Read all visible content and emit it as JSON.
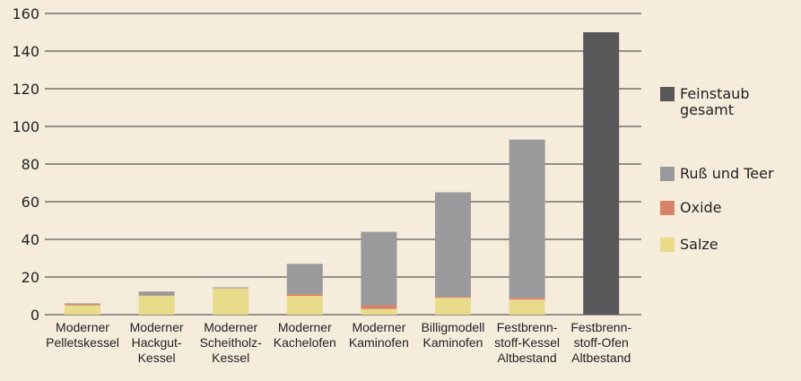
{
  "chart_data": {
    "type": "stacked_bar",
    "categories": [
      [
        "Moderner",
        "Pelletskessel"
      ],
      [
        "Moderner",
        "Hackgut-",
        "Kessel"
      ],
      [
        "Moderner",
        "Scheitholz-",
        "Kessel"
      ],
      [
        "Moderner",
        "Kachelofen"
      ],
      [
        "Moderner",
        "Kaminofen"
      ],
      [
        "Billigmodell",
        "Kaminofen"
      ],
      [
        "Festbrenn-",
        "stoff-Kessel",
        "Altbestand"
      ],
      [
        "Festbrenn-",
        "stoff-Ofen",
        "Altbestand"
      ]
    ],
    "series": [
      {
        "name": "Salze",
        "color": "#e8dc8b",
        "values": [
          5,
          10,
          14,
          10,
          3,
          9,
          8,
          null
        ]
      },
      {
        "name": "Oxide",
        "color": "#d9826a",
        "values": [
          0.5,
          0.3,
          null,
          1,
          2,
          0.5,
          1,
          null
        ]
      },
      {
        "name": "Ruß und Teer",
        "color": "#9a9a9d",
        "values": [
          0.5,
          2,
          0.5,
          16,
          39,
          55.5,
          84,
          null
        ]
      },
      {
        "name": "Feinstaub gesamt",
        "color": "#58585a",
        "values": [
          null,
          null,
          null,
          null,
          null,
          null,
          null,
          150
        ]
      }
    ],
    "ylim": [
      0,
      160
    ],
    "yticks": [
      0,
      20,
      40,
      60,
      80,
      100,
      120,
      140,
      160
    ],
    "grid": true
  }
}
